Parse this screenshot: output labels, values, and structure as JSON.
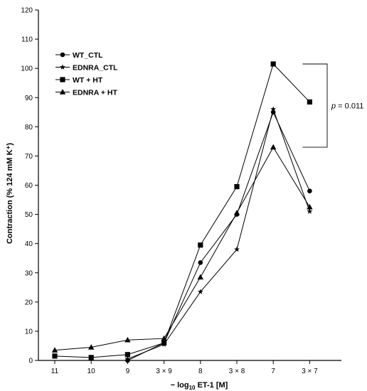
{
  "chart_data": {
    "type": "line",
    "categories": [
      "11",
      "10",
      "9",
      "3 × 9",
      "8",
      "3 × 8",
      "7",
      "3 × 7"
    ],
    "xlabel_prefix": "− log",
    "xlabel_sub": "10",
    "xlabel_suffix": " ET-1 [M]",
    "ylabel": "Contraction (% 124 mM K⁺)",
    "ylim": [
      0,
      120
    ],
    "yticks": [
      0,
      10,
      20,
      30,
      40,
      50,
      60,
      70,
      80,
      90,
      100,
      110,
      120
    ],
    "grid": false,
    "legend_position": "top-left",
    "series": [
      {
        "name": "WT_CTL",
        "marker": "circle",
        "values": [
          null,
          null,
          0,
          6,
          33.5,
          50,
          85,
          58
        ]
      },
      {
        "name": "EDNRA_CTL",
        "marker": "star",
        "values": [
          null,
          null,
          0.5,
          5.5,
          23.5,
          38,
          86,
          51
        ]
      },
      {
        "name": "WT + HT",
        "marker": "square",
        "values": [
          1.5,
          1,
          2,
          6,
          39.5,
          59.5,
          101.5,
          88.5
        ]
      },
      {
        "name": "EDNRA + HT",
        "marker": "triangle",
        "values": [
          3.5,
          4.5,
          7,
          7.5,
          28.5,
          50.5,
          73,
          52.5
        ]
      }
    ],
    "annotation": {
      "p_label": "p",
      "p_rest": " = 0.011"
    }
  }
}
